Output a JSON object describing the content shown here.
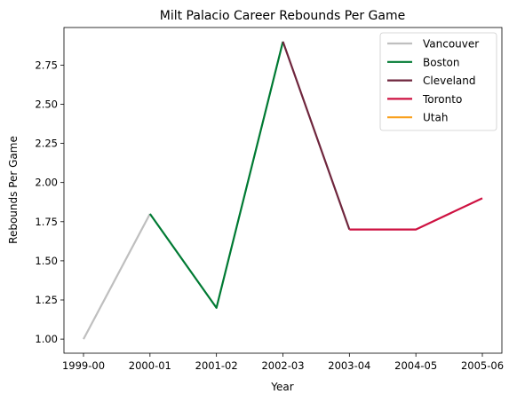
{
  "chart_data": {
    "type": "line",
    "title": "Milt Palacio Career Rebounds Per Game",
    "xlabel": "Year",
    "ylabel": "Rebounds Per Game",
    "categories": [
      "1999-00",
      "2000-01",
      "2001-02",
      "2002-03",
      "2003-04",
      "2004-05",
      "2005-06"
    ],
    "ylim": [
      0.91,
      2.99
    ],
    "yticks": [
      1.0,
      1.25,
      1.5,
      1.75,
      2.0,
      2.25,
      2.5,
      2.75
    ],
    "ytick_labels": [
      "1.00",
      "1.25",
      "1.50",
      "1.75",
      "2.00",
      "2.25",
      "2.50",
      "2.75"
    ],
    "grid": false,
    "legend_position": "top-right",
    "series": [
      {
        "name": "Vancouver",
        "color": "#bfbfbf",
        "points": [
          {
            "x": "1999-00",
            "y": 1.0
          },
          {
            "x": "2000-01",
            "y": 1.8
          }
        ]
      },
      {
        "name": "Boston",
        "color": "#007a33",
        "points": [
          {
            "x": "2000-01",
            "y": 1.8
          },
          {
            "x": "2001-02",
            "y": 1.2
          },
          {
            "x": "2002-03",
            "y": 2.9
          }
        ]
      },
      {
        "name": "Cleveland",
        "color": "#6f263d",
        "points": [
          {
            "x": "2002-03",
            "y": 2.9
          },
          {
            "x": "2003-04",
            "y": 1.7
          }
        ]
      },
      {
        "name": "Toronto",
        "color": "#ce1141",
        "points": [
          {
            "x": "2003-04",
            "y": 1.7
          },
          {
            "x": "2004-05",
            "y": 1.7
          },
          {
            "x": "2005-06",
            "y": 1.9
          }
        ]
      },
      {
        "name": "Utah",
        "color": "#f9a01b",
        "points": []
      }
    ]
  }
}
